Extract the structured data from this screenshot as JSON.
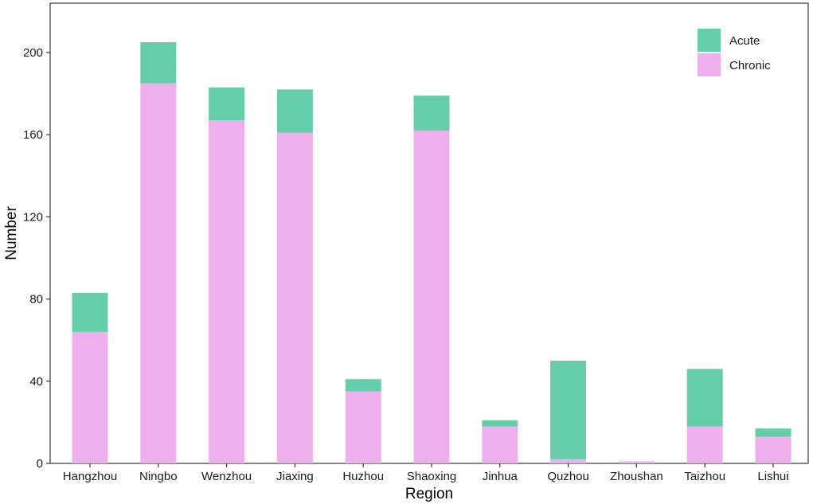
{
  "chart_data": {
    "type": "bar",
    "stacked": true,
    "categories": [
      "Hangzhou",
      "Ningbo",
      "Wenzhou",
      "Jiaxing",
      "Huzhou",
      "Shaoxing",
      "Jinhua",
      "Quzhou",
      "Zhoushan",
      "Taizhou",
      "Lishui"
    ],
    "series": [
      {
        "name": "Chronic",
        "color": "#eeb0ec",
        "values": [
          64,
          185,
          167,
          161,
          35,
          162,
          18,
          2,
          1,
          18,
          13
        ]
      },
      {
        "name": "Acute",
        "color": "#66cdaa",
        "values": [
          19,
          20,
          16,
          21,
          6,
          17,
          3,
          48,
          0,
          28,
          4
        ]
      }
    ],
    "xlabel": "Region",
    "ylabel": "Number",
    "ylim": [
      0,
      224
    ],
    "yticks": [
      0,
      40,
      80,
      120,
      160,
      200
    ],
    "grid": false,
    "legend_position": "top-right",
    "legend_order": [
      "Acute",
      "Chronic"
    ]
  }
}
